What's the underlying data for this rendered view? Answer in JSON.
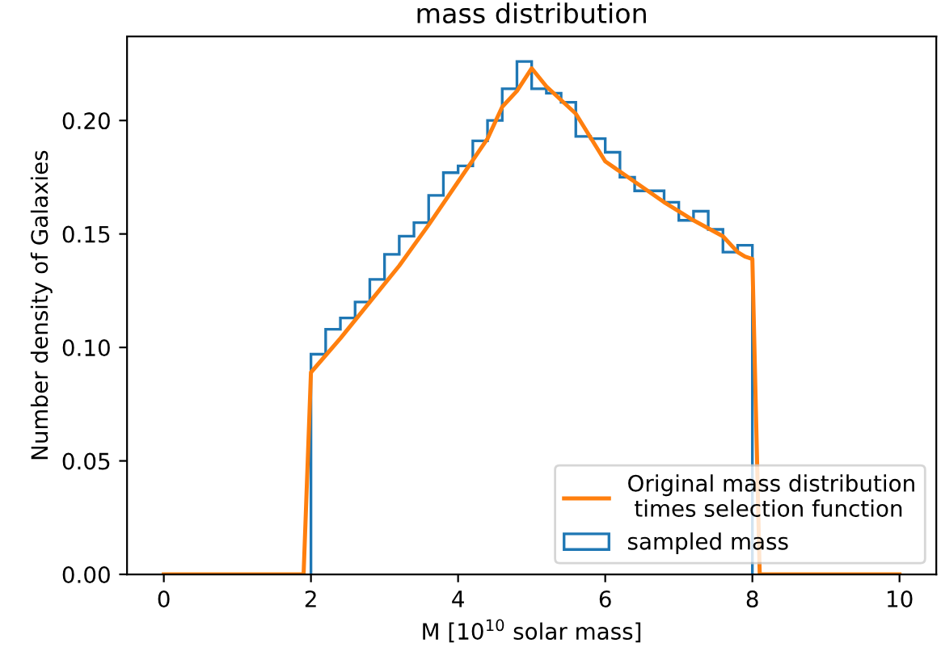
{
  "chart_data": {
    "type": "histogram",
    "title": "mass distribution",
    "xlabel": "M [10$^{10}$ solar mass]",
    "ylabel": "Number density of Galaxies",
    "series": [
      {
        "type": "line",
        "name": "Original mass distribution\n times selection function",
        "color": "#ff7f0e",
        "x": [
          0,
          1.9,
          2.0,
          2.4,
          2.8,
          3.2,
          3.6,
          4.0,
          4.4,
          4.6,
          4.8,
          5.0,
          5.2,
          5.6,
          6.0,
          6.4,
          6.8,
          7.2,
          7.6,
          7.8,
          7.9,
          8.0,
          8.1,
          10
        ],
        "values": [
          0,
          0,
          0.089,
          0.104,
          0.12,
          0.136,
          0.154,
          0.173,
          0.192,
          0.206,
          0.213,
          0.223,
          0.215,
          0.203,
          0.182,
          0.173,
          0.164,
          0.156,
          0.149,
          0.142,
          0.14,
          0.139,
          0,
          0
        ]
      },
      {
        "name": "sampled mass",
        "color": "#1f77b4",
        "bins": [
          2.0,
          2.2,
          2.4,
          2.6,
          2.8,
          3.0,
          3.2,
          3.4,
          3.6,
          3.8,
          4.0,
          4.2,
          4.4,
          4.6,
          4.8,
          5.0,
          5.2,
          5.4,
          5.6,
          5.8,
          6.0,
          6.2,
          6.4,
          6.6,
          6.8,
          7.0,
          7.2,
          7.4,
          7.6,
          7.8,
          8.0
        ],
        "values": [
          0.097,
          0.108,
          0.113,
          0.12,
          0.13,
          0.141,
          0.149,
          0.155,
          0.167,
          0.177,
          0.18,
          0.191,
          0.2,
          0.214,
          0.226,
          0.214,
          0.212,
          0.208,
          0.193,
          0.192,
          0.186,
          0.175,
          0.169,
          0.169,
          0.164,
          0.156,
          0.16,
          0.152,
          0.142,
          0.145
        ]
      }
    ],
    "xlim": [
      -0.5,
      10.5
    ],
    "ylim": [
      0,
      0.237
    ],
    "xticks": [
      0,
      2,
      4,
      6,
      8,
      10
    ],
    "yticks": [
      {
        "value": 0,
        "label": "0.00"
      },
      {
        "value": 0.05,
        "label": "0.05"
      },
      {
        "value": 0.1,
        "label": "0.10"
      },
      {
        "value": 0.15,
        "label": "0.15"
      },
      {
        "value": 0.2,
        "label": "0.20"
      }
    ],
    "grid": false,
    "legend": "bottom right"
  }
}
